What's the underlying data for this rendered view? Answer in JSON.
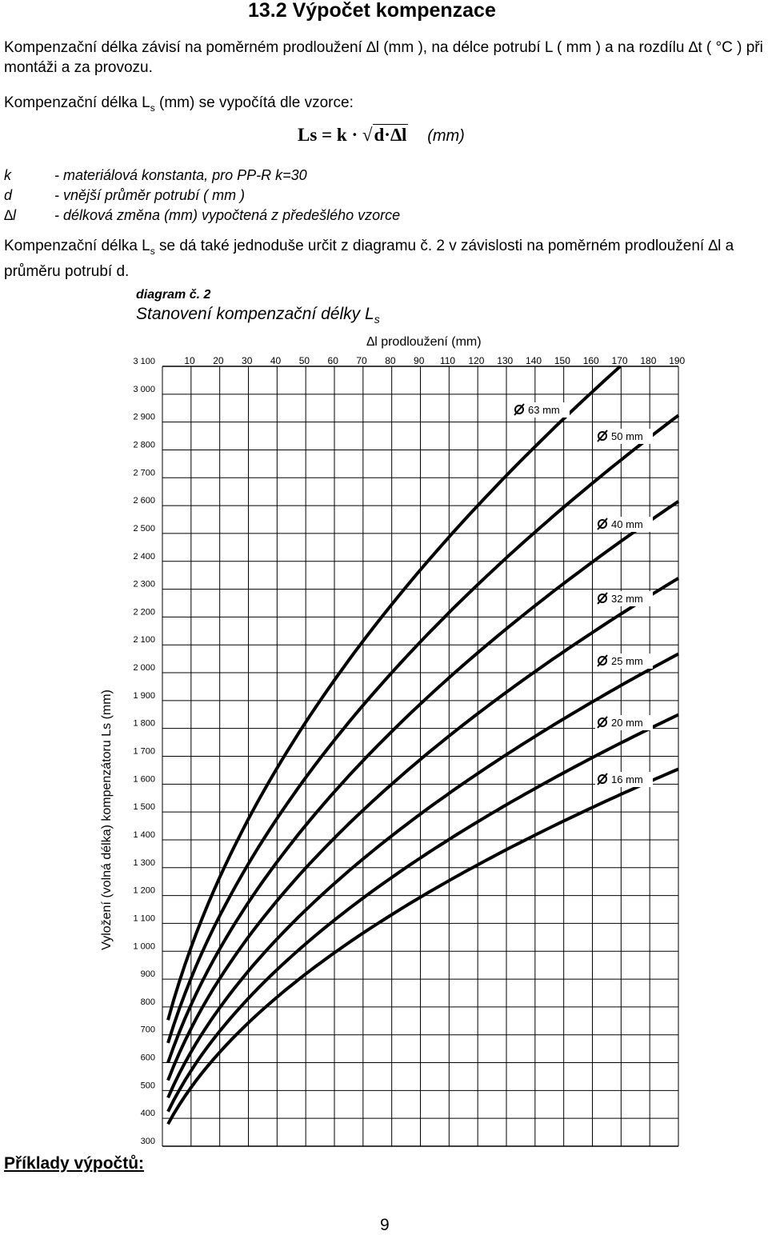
{
  "heading": "13.2  Výpočet kompenzace",
  "intro": "Kompenzační délka závisí na poměrném prodloužení  ∆l (mm ), na délce potrubí  L ( mm ) a na rozdílu  ∆t ( °C ) při montáži a za provozu.",
  "formula_intro_pre": "Kompenzační délka L",
  "formula_intro_sub": "s",
  "formula_intro_post": "  (mm) se vypočítá dle vzorce:",
  "formula": {
    "lhs": "Ls",
    "eq": " = k · ",
    "radicand": "d·∆l",
    "unit": "(mm)"
  },
  "variables": [
    {
      "symbol": "k",
      "desc": "- materiálová konstanta, pro PP-R  k=30"
    },
    {
      "symbol": "d",
      "desc": "- vnější průměr potrubí ( mm )"
    },
    {
      "symbol": "∆l",
      "desc": "- délková změna (mm) vypočtená z předešlého vzorce"
    }
  ],
  "diagram_note_pre": " Kompenzační délka L",
  "diagram_note_sub": "s",
  "diagram_note_post": " se dá také jednoduše určit z diagramu č. 2 v závislosti  na poměrném prodloužení ∆l a průměru potrubí  d.",
  "diagram_label": "diagram č. 2",
  "diagram_title": "Stanovení kompenzační délky L",
  "diagram_title_sub": "s",
  "examples_heading": "Příklady výpočtů:",
  "page_number": "9",
  "chart_data": {
    "type": "line",
    "title": "",
    "xlabel": "∆l prodloužení (mm)",
    "ylabel": "Vyložení (volná délka) kompenzátoru Ls  (mm)",
    "x_ticks": [
      "10",
      "20",
      "30",
      "40",
      "50",
      "60",
      "70",
      "80",
      "90",
      "110",
      "120",
      "130",
      "140",
      "150",
      "160",
      "170",
      "180",
      "190"
    ],
    "y_ticks": [
      "300",
      "400",
      "500",
      "600",
      "700",
      "800",
      "900",
      "1 000",
      "1 100",
      "1 200",
      "1 300",
      "1 400",
      "1 500",
      "1 600",
      "1 700",
      "1 800",
      "1 900",
      "2 000",
      "2 100",
      "2 200",
      "2 300",
      "2 400",
      "2 500",
      "2 600",
      "2 700",
      "2 800",
      "2 900",
      "3 000",
      "3 100"
    ],
    "ylim": [
      300,
      3100
    ],
    "grid": true,
    "formula_k": 30,
    "series": [
      {
        "name": "63 mm",
        "d": 63
      },
      {
        "name": "50 mm",
        "d": 50
      },
      {
        "name": "40 mm",
        "d": 40
      },
      {
        "name": "32 mm",
        "d": 32
      },
      {
        "name": "25 mm",
        "d": 25
      },
      {
        "name": "20 mm",
        "d": 20
      },
      {
        "name": "16 mm",
        "d": 16
      }
    ]
  }
}
